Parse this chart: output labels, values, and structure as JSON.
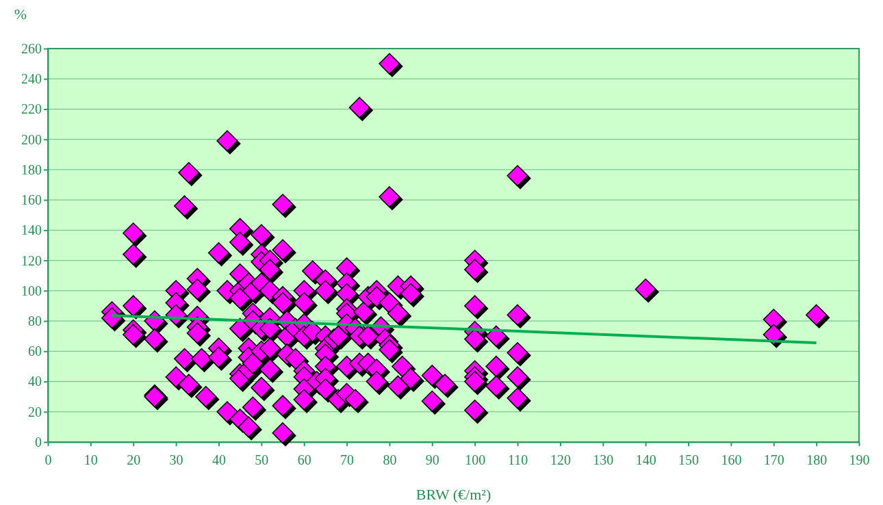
{
  "chart_data": {
    "type": "scatter",
    "ylabel": "%",
    "xlabel": "BRW (€/m²)",
    "xlim": [
      0,
      190
    ],
    "xticks": [
      0,
      10,
      20,
      30,
      40,
      50,
      60,
      70,
      80,
      90,
      100,
      110,
      120,
      130,
      140,
      150,
      160,
      170,
      180,
      190
    ],
    "ylim": [
      0,
      260
    ],
    "yticks": [
      0,
      20,
      40,
      60,
      80,
      100,
      120,
      140,
      160,
      180,
      200,
      220,
      240,
      260
    ],
    "grid": "y",
    "marker": "diamond",
    "series": [
      {
        "color": "#ff00ff",
        "x": [
          15,
          15,
          20,
          20,
          20,
          20,
          20,
          25,
          25,
          25,
          25,
          30,
          30,
          30,
          30,
          32,
          32,
          33,
          33,
          35,
          35,
          35,
          35,
          35,
          36,
          37,
          40,
          40,
          40,
          42,
          42,
          42,
          45,
          45,
          45,
          45,
          45,
          45,
          45,
          45,
          45,
          47,
          47,
          47,
          47,
          47,
          48,
          48,
          48,
          48,
          48,
          50,
          50,
          50,
          50,
          50,
          50,
          50,
          52,
          52,
          52,
          52,
          52,
          52,
          52,
          55,
          55,
          55,
          55,
          55,
          55,
          56,
          56,
          56,
          58,
          58,
          60,
          60,
          60,
          60,
          60,
          60,
          60,
          60,
          62,
          62,
          63,
          65,
          65,
          65,
          65,
          65,
          65,
          65,
          65,
          67,
          68,
          68,
          70,
          70,
          70,
          70,
          70,
          70,
          70,
          70,
          72,
          72,
          73,
          73,
          73,
          74,
          75,
          75,
          75,
          77,
          77,
          77,
          77,
          78,
          79,
          80,
          80,
          80,
          80,
          80,
          82,
          82,
          82,
          83,
          85,
          85,
          85,
          90,
          90,
          93,
          100,
          100,
          100,
          100,
          100,
          100,
          100,
          100,
          100,
          105,
          105,
          105,
          110,
          110,
          110,
          110,
          110,
          140,
          170,
          170,
          180
        ],
        "values": [
          86,
          82,
          138,
          124,
          90,
          74,
          71,
          80,
          68,
          31,
          30,
          100,
          92,
          84,
          43,
          156,
          55,
          178,
          38,
          108,
          101,
          83,
          76,
          72,
          55,
          30,
          125,
          62,
          56,
          199,
          100,
          20,
          141,
          132,
          111,
          100,
          95,
          75,
          45,
          42,
          15,
          105,
          62,
          56,
          48,
          10,
          100,
          85,
          80,
          52,
          23,
          137,
          124,
          119,
          105,
          75,
          60,
          36,
          120,
          114,
          100,
          82,
          75,
          62,
          48,
          157,
          127,
          96,
          92,
          24,
          6,
          80,
          70,
          58,
          75,
          55,
          100,
          92,
          78,
          70,
          47,
          43,
          35,
          28,
          113,
          73,
          40,
          107,
          100,
          70,
          62,
          58,
          50,
          42,
          35,
          68,
          70,
          28,
          115,
          105,
          98,
          88,
          85,
          78,
          50,
          32,
          75,
          28,
          221,
          70,
          52,
          86,
          96,
          70,
          52,
          100,
          96,
          48,
          40,
          76,
          68,
          250,
          162,
          92,
          64,
          61,
          103,
          85,
          37,
          50,
          103,
          98,
          42,
          44,
          27,
          38,
          120,
          114,
          90,
          73,
          68,
          47,
          43,
          40,
          21,
          70,
          50,
          37,
          176,
          84,
          59,
          43,
          29,
          101,
          81,
          71,
          84
        ]
      },
      {
        "type": "line",
        "color": "#00b050",
        "marker": "none",
        "x": [
          15,
          180
        ],
        "values": [
          83.6,
          65.6
        ]
      }
    ]
  }
}
